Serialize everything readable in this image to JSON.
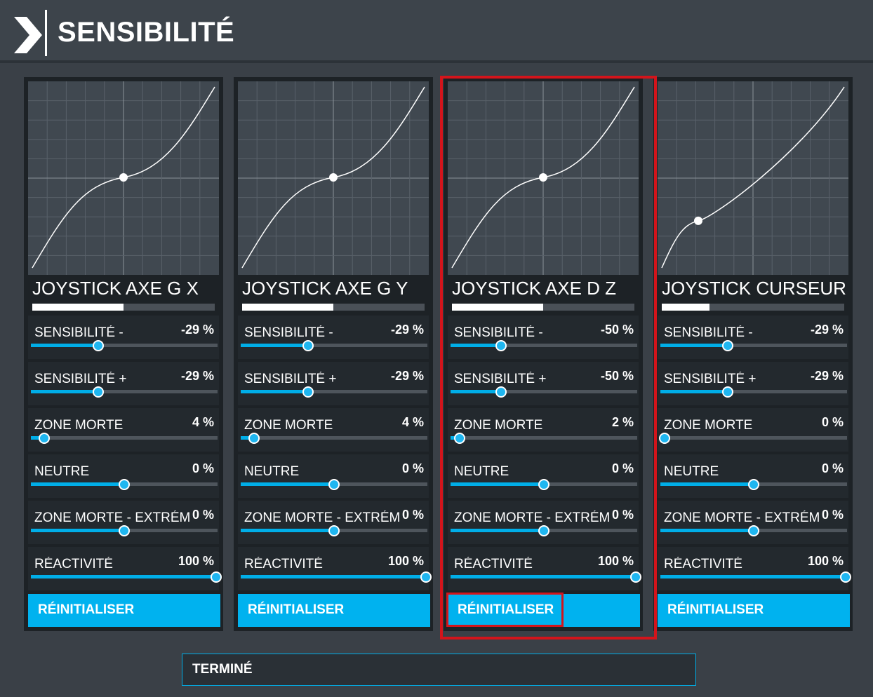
{
  "header": {
    "title": "SENSIBILITÉ",
    "back_icon": "chevron-right-icon"
  },
  "colors": {
    "accent": "#00b2ef",
    "highlight": "#d3141b",
    "card": "#1d2226",
    "graph": "#404850"
  },
  "cards": [
    {
      "name": "JOYSTICK AXE G X",
      "axis_level": 0.5,
      "curve_point": [
        0.5,
        0.5
      ],
      "rows": [
        {
          "label": "SENSIBILITÉ -",
          "value": "-29 %",
          "level": 0.36
        },
        {
          "label": "SENSIBILITÉ +",
          "value": "-29 %",
          "level": 0.36
        },
        {
          "label": "ZONE MORTE",
          "value": "4 %",
          "level": 0.07
        },
        {
          "label": "NEUTRE",
          "value": "0 %",
          "level": 0.5
        },
        {
          "label": "ZONE MORTE - EXTRÉMITÉ",
          "value": "0 %",
          "level": 0.5
        },
        {
          "label": "RÉACTIVITÉ",
          "value": "100 %",
          "level": 1.0
        }
      ],
      "reset_label": "RÉINITIALISER"
    },
    {
      "name": "JOYSTICK AXE G Y",
      "axis_level": 0.5,
      "curve_point": [
        0.5,
        0.5
      ],
      "rows": [
        {
          "label": "SENSIBILITÉ -",
          "value": "-29 %",
          "level": 0.36
        },
        {
          "label": "SENSIBILITÉ +",
          "value": "-29 %",
          "level": 0.36
        },
        {
          "label": "ZONE MORTE",
          "value": "4 %",
          "level": 0.07
        },
        {
          "label": "NEUTRE",
          "value": "0 %",
          "level": 0.5
        },
        {
          "label": "ZONE MORTE - EXTRÉMITÉ",
          "value": "0 %",
          "level": 0.5
        },
        {
          "label": "RÉACTIVITÉ",
          "value": "100 %",
          "level": 1.0
        }
      ],
      "reset_label": "RÉINITIALISER"
    },
    {
      "name": "JOYSTICK AXE D Z",
      "axis_level": 0.5,
      "curve_point": [
        0.5,
        0.5
      ],
      "rows": [
        {
          "label": "SENSIBILITÉ -",
          "value": "-50 %",
          "level": 0.27
        },
        {
          "label": "SENSIBILITÉ +",
          "value": "-50 %",
          "level": 0.27
        },
        {
          "label": "ZONE MORTE",
          "value": "2 %",
          "level": 0.05
        },
        {
          "label": "NEUTRE",
          "value": "0 %",
          "level": 0.5
        },
        {
          "label": "ZONE MORTE - EXTRÉMITÉ",
          "value": "0 %",
          "level": 0.5
        },
        {
          "label": "RÉACTIVITÉ",
          "value": "100 %",
          "level": 1.0
        }
      ],
      "reset_label": "RÉINITIALISER"
    },
    {
      "name": "JOYSTICK CURSEUR X",
      "axis_level": 0.26,
      "curve_point": [
        0.2,
        0.26
      ],
      "rows": [
        {
          "label": "SENSIBILITÉ -",
          "value": "-29 %",
          "level": 0.36
        },
        {
          "label": "SENSIBILITÉ +",
          "value": "-29 %",
          "level": 0.36
        },
        {
          "label": "ZONE MORTE",
          "value": "0 %",
          "level": 0.0
        },
        {
          "label": "NEUTRE",
          "value": "0 %",
          "level": 0.5
        },
        {
          "label": "ZONE MORTE - EXTRÉMITÉ",
          "value": "0 %",
          "level": 0.5
        },
        {
          "label": "RÉACTIVITÉ",
          "value": "100 %",
          "level": 1.0
        }
      ],
      "reset_label": "RÉINITIALISER"
    }
  ],
  "footer": {
    "done_label": "TERMINÉ"
  }
}
